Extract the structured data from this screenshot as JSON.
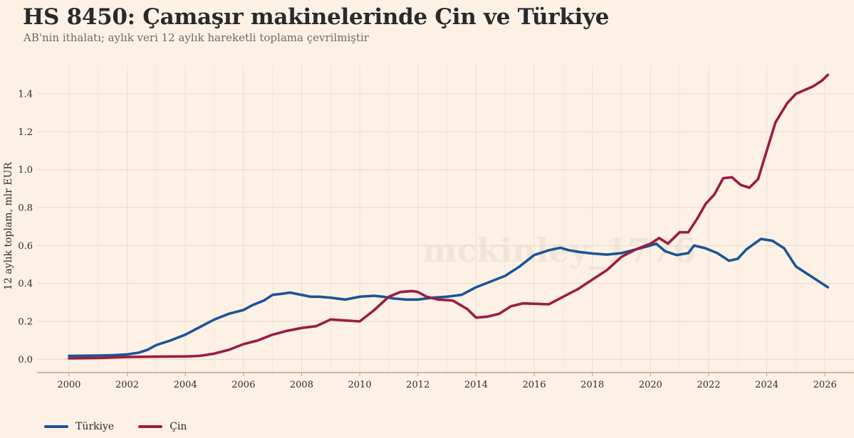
{
  "chart_data": {
    "type": "line",
    "title": "HS 8450: Çamaşır makinelerinde Çin ve Türkiye",
    "subtitle": "AB'nin ithalatı; aylık veri 12 aylık hareketli toplama çevrilmiştir",
    "ylabel": "12 aylık toplam, mlr EUR",
    "xlabel": "",
    "xlim": [
      1998.9,
      2027.0
    ],
    "ylim": [
      -0.07,
      1.55
    ],
    "x_ticks": [
      2000,
      2002,
      2004,
      2006,
      2008,
      2010,
      2012,
      2014,
      2016,
      2018,
      2020,
      2022,
      2024,
      2026
    ],
    "y_ticks": [
      0.0,
      0.2,
      0.4,
      0.6,
      0.8,
      1.0,
      1.2,
      1.4
    ],
    "y_tick_labels": [
      "0.0",
      "0.2",
      "0.4",
      "0.6",
      "0.8",
      "1.0",
      "1.2",
      "1.4"
    ],
    "x_tick_labels": [
      "2000",
      "2002",
      "2004",
      "2006",
      "2008",
      "2010",
      "2012",
      "2014",
      "2016",
      "2018",
      "2020",
      "2022",
      "2024",
      "2026"
    ],
    "grid": true,
    "legend_position": "bottom-left",
    "watermark": "mckinley_1776",
    "series": [
      {
        "name": "Türkiye",
        "color": "#1a5596",
        "points": [
          [
            2000.0,
            0.018
          ],
          [
            2000.5,
            0.019
          ],
          [
            2001.0,
            0.02
          ],
          [
            2001.5,
            0.022
          ],
          [
            2002.0,
            0.026
          ],
          [
            2002.4,
            0.035
          ],
          [
            2002.7,
            0.05
          ],
          [
            2003.0,
            0.075
          ],
          [
            2003.5,
            0.1
          ],
          [
            2004.0,
            0.13
          ],
          [
            2004.5,
            0.17
          ],
          [
            2005.0,
            0.21
          ],
          [
            2005.5,
            0.24
          ],
          [
            2006.0,
            0.26
          ],
          [
            2006.3,
            0.285
          ],
          [
            2006.7,
            0.31
          ],
          [
            2007.0,
            0.34
          ],
          [
            2007.3,
            0.345
          ],
          [
            2007.6,
            0.352
          ],
          [
            2008.0,
            0.34
          ],
          [
            2008.3,
            0.33
          ],
          [
            2008.6,
            0.33
          ],
          [
            2009.0,
            0.325
          ],
          [
            2009.5,
            0.315
          ],
          [
            2010.0,
            0.33
          ],
          [
            2010.5,
            0.335
          ],
          [
            2010.8,
            0.33
          ],
          [
            2011.2,
            0.32
          ],
          [
            2011.6,
            0.315
          ],
          [
            2012.0,
            0.315
          ],
          [
            2012.5,
            0.325
          ],
          [
            2013.0,
            0.33
          ],
          [
            2013.5,
            0.34
          ],
          [
            2014.0,
            0.38
          ],
          [
            2014.5,
            0.41
          ],
          [
            2015.0,
            0.44
          ],
          [
            2015.5,
            0.49
          ],
          [
            2016.0,
            0.55
          ],
          [
            2016.5,
            0.575
          ],
          [
            2016.9,
            0.588
          ],
          [
            2017.2,
            0.575
          ],
          [
            2017.6,
            0.565
          ],
          [
            2018.0,
            0.558
          ],
          [
            2018.5,
            0.552
          ],
          [
            2019.0,
            0.56
          ],
          [
            2019.5,
            0.58
          ],
          [
            2020.0,
            0.6
          ],
          [
            2020.2,
            0.61
          ],
          [
            2020.5,
            0.57
          ],
          [
            2020.9,
            0.55
          ],
          [
            2021.3,
            0.56
          ],
          [
            2021.5,
            0.6
          ],
          [
            2021.9,
            0.585
          ],
          [
            2022.3,
            0.56
          ],
          [
            2022.7,
            0.52
          ],
          [
            2023.0,
            0.53
          ],
          [
            2023.3,
            0.58
          ],
          [
            2023.8,
            0.635
          ],
          [
            2024.2,
            0.625
          ],
          [
            2024.6,
            0.585
          ],
          [
            2025.0,
            0.49
          ],
          [
            2025.5,
            0.44
          ],
          [
            2026.1,
            0.38
          ]
        ]
      },
      {
        "name": "Çin",
        "color": "#9b1c43",
        "points": [
          [
            2000.0,
            0.005
          ],
          [
            2001.0,
            0.007
          ],
          [
            2002.0,
            0.012
          ],
          [
            2003.0,
            0.014
          ],
          [
            2004.0,
            0.015
          ],
          [
            2004.5,
            0.018
          ],
          [
            2005.0,
            0.03
          ],
          [
            2005.5,
            0.05
          ],
          [
            2006.0,
            0.08
          ],
          [
            2006.5,
            0.1
          ],
          [
            2007.0,
            0.13
          ],
          [
            2007.5,
            0.15
          ],
          [
            2008.0,
            0.165
          ],
          [
            2008.5,
            0.175
          ],
          [
            2009.0,
            0.21
          ],
          [
            2009.5,
            0.205
          ],
          [
            2010.0,
            0.2
          ],
          [
            2010.5,
            0.26
          ],
          [
            2011.0,
            0.33
          ],
          [
            2011.4,
            0.355
          ],
          [
            2011.8,
            0.36
          ],
          [
            2012.0,
            0.355
          ],
          [
            2012.3,
            0.33
          ],
          [
            2012.7,
            0.315
          ],
          [
            2013.2,
            0.31
          ],
          [
            2013.7,
            0.265
          ],
          [
            2014.0,
            0.22
          ],
          [
            2014.4,
            0.225
          ],
          [
            2014.8,
            0.24
          ],
          [
            2015.2,
            0.28
          ],
          [
            2015.6,
            0.295
          ],
          [
            2016.0,
            0.293
          ],
          [
            2016.5,
            0.29
          ],
          [
            2017.0,
            0.33
          ],
          [
            2017.5,
            0.37
          ],
          [
            2018.0,
            0.42
          ],
          [
            2018.5,
            0.47
          ],
          [
            2019.0,
            0.54
          ],
          [
            2019.5,
            0.58
          ],
          [
            2020.0,
            0.61
          ],
          [
            2020.3,
            0.64
          ],
          [
            2020.6,
            0.61
          ],
          [
            2021.0,
            0.67
          ],
          [
            2021.3,
            0.67
          ],
          [
            2021.6,
            0.74
          ],
          [
            2021.9,
            0.82
          ],
          [
            2022.2,
            0.87
          ],
          [
            2022.5,
            0.955
          ],
          [
            2022.8,
            0.96
          ],
          [
            2023.1,
            0.92
          ],
          [
            2023.4,
            0.905
          ],
          [
            2023.7,
            0.95
          ],
          [
            2024.0,
            1.1
          ],
          [
            2024.3,
            1.25
          ],
          [
            2024.7,
            1.35
          ],
          [
            2025.0,
            1.4
          ],
          [
            2025.3,
            1.42
          ],
          [
            2025.6,
            1.44
          ],
          [
            2025.9,
            1.47
          ],
          [
            2026.1,
            1.5
          ]
        ]
      }
    ]
  }
}
